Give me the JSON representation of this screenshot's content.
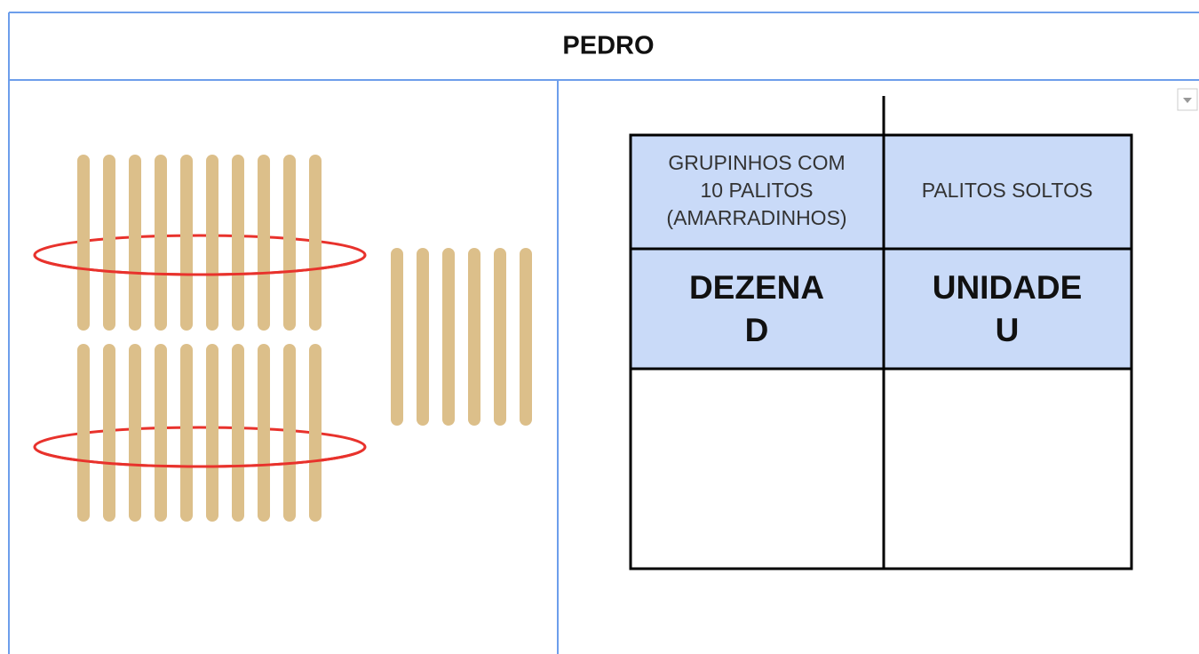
{
  "header": {
    "title": "PEDRO"
  },
  "table": {
    "rows": [
      [
        [
          "GRUPINHOS COM",
          "10 PALITOS",
          "(AMARRADINHOS)"
        ],
        [
          "PALITOS SOLTOS"
        ]
      ],
      [
        [
          "DEZENA",
          "D"
        ],
        [
          "UNIDADE",
          "U"
        ]
      ]
    ]
  }
}
